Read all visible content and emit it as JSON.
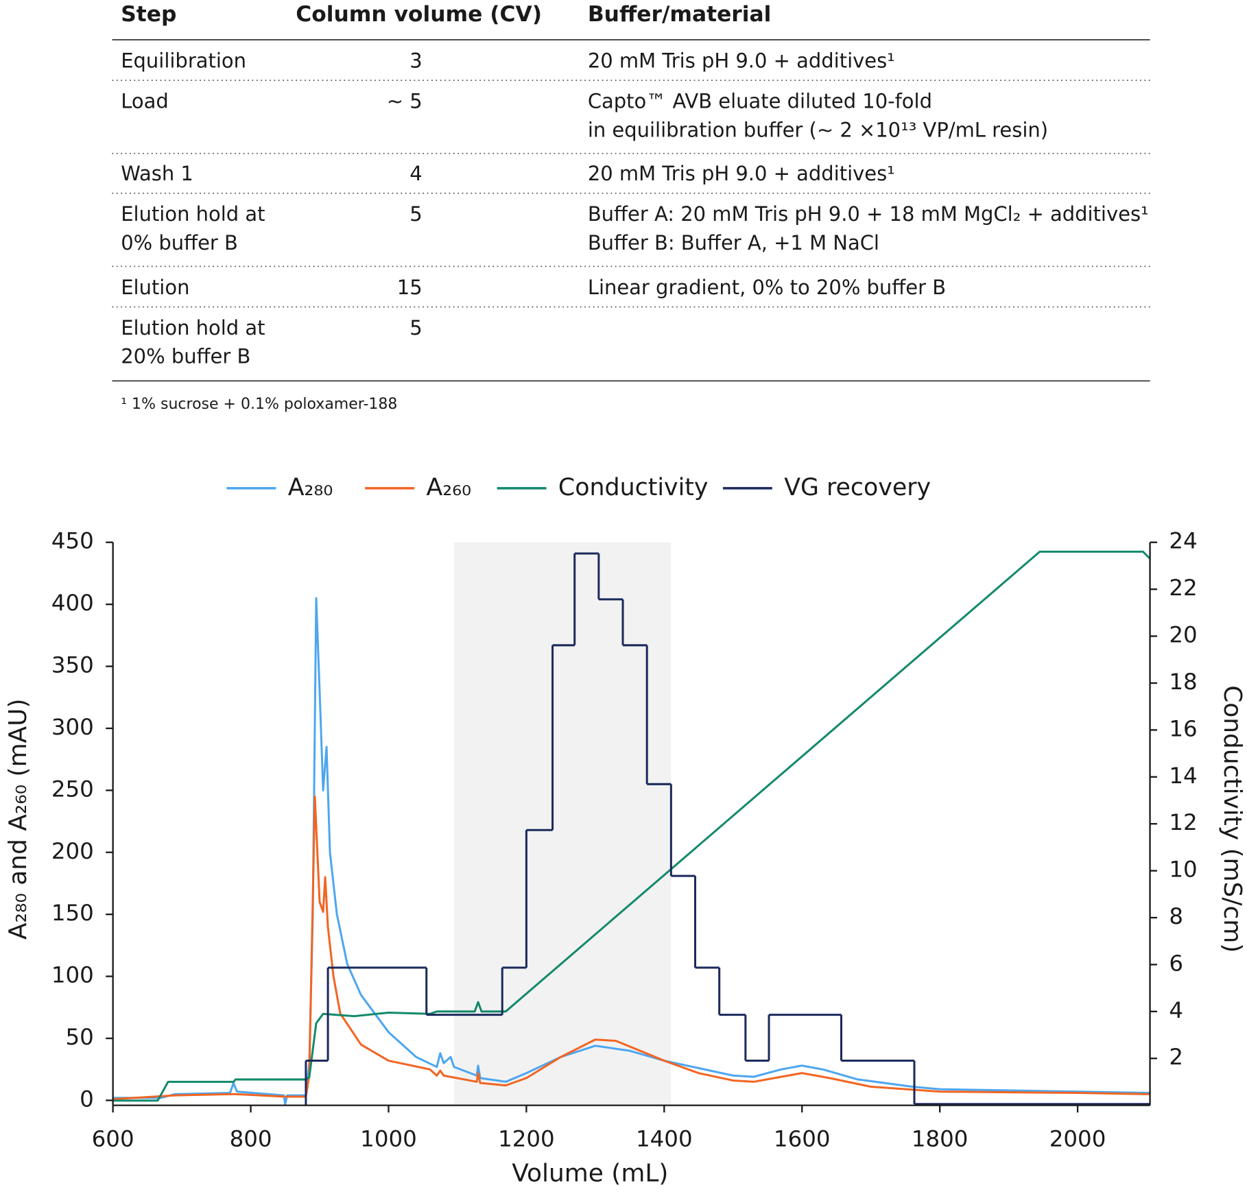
{
  "table": {
    "header": [
      "Step",
      "Column volume (CV)",
      "Buffer/material"
    ],
    "rows": [
      [
        [
          "Equilibration"
        ],
        [
          "3"
        ],
        [
          "20 mM Tris pH 9.0 + additives¹"
        ]
      ],
      [
        [
          "Load"
        ],
        [
          "~ 5"
        ],
        [
          "Capto™ AVB eluate diluted 10-fold",
          "in equilibration buffer (~ 2 ×10¹³ VP/mL resin)"
        ]
      ],
      [
        [
          "Wash 1"
        ],
        [
          "4"
        ],
        [
          "20 mM Tris pH 9.0 + additives¹"
        ]
      ],
      [
        [
          "Elution hold at",
          "0% buffer B"
        ],
        [
          "5"
        ],
        [
          "Buffer A: 20 mM Tris pH 9.0 + 18 mM MgCl₂ + additives¹",
          "Buffer B: Buffer A, +1 M NaCl"
        ]
      ],
      [
        [
          "Elution"
        ],
        [
          "15"
        ],
        [
          "Linear gradient, 0% to 20% buffer B"
        ]
      ],
      [
        [
          "Elution hold at",
          "20% buffer B"
        ],
        [
          "5"
        ],
        []
      ]
    ],
    "footnote": "¹ 1% sucrose + 0.1% poloxamer-188"
  },
  "chart_data": {
    "type": "line",
    "xlabel": "Volume (mL)",
    "ylabel": "A₂₈₀ and A₂₆₀ (mAU)",
    "y2label": "Conductivity (mS/cm)",
    "xlim": [
      600,
      2105
    ],
    "ylim": [
      -4,
      450
    ],
    "y2lim": [
      0,
      24
    ],
    "xticks": [
      600,
      800,
      1000,
      1200,
      1400,
      1600,
      1800,
      2000
    ],
    "yticks": [
      0,
      50,
      100,
      150,
      200,
      250,
      300,
      350,
      400,
      450
    ],
    "y2ticks": [
      2,
      4,
      6,
      8,
      10,
      12,
      14,
      16,
      18,
      20,
      22,
      24
    ],
    "highlight_xrange": [
      1095,
      1410
    ],
    "highlight_color": "#f2f2f2",
    "legend": "top",
    "series": [
      {
        "name": "A₂₈₀",
        "color": "#4da6f0",
        "x": [
          600,
          670,
          690,
          770,
          775,
          780,
          848,
          850,
          853,
          880,
          885,
          890,
          895,
          900,
          905,
          910,
          915,
          925,
          940,
          960,
          1000,
          1040,
          1070,
          1075,
          1080,
          1090,
          1095,
          1128,
          1130,
          1133,
          1170,
          1200,
          1250,
          1300,
          1350,
          1400,
          1450,
          1500,
          1530,
          1570,
          1600,
          1630,
          1680,
          1760,
          1800,
          1900,
          2000,
          2105
        ],
        "values": [
          2,
          2,
          5,
          6,
          14,
          7,
          4,
          -3,
          4,
          4,
          30,
          150,
          405,
          330,
          250,
          285,
          200,
          150,
          110,
          85,
          55,
          35,
          27,
          38,
          30,
          35,
          27,
          20,
          28,
          18,
          15,
          22,
          35,
          44,
          40,
          32,
          26,
          20,
          19,
          25,
          28,
          25,
          17,
          11,
          9,
          8,
          7,
          6
        ]
      },
      {
        "name": "A₂₆₀",
        "color": "#f26522",
        "x": [
          600,
          690,
          770,
          780,
          850,
          880,
          885,
          893,
          900,
          905,
          908,
          912,
          920,
          930,
          960,
          1000,
          1060,
          1070,
          1075,
          1080,
          1128,
          1130,
          1133,
          1170,
          1200,
          1250,
          1300,
          1330,
          1400,
          1450,
          1500,
          1530,
          1570,
          1600,
          1640,
          1700,
          1800,
          2000,
          2105
        ],
        "values": [
          1,
          4,
          5,
          5,
          3,
          3,
          20,
          245,
          160,
          152,
          180,
          140,
          100,
          70,
          45,
          32,
          25,
          20,
          24,
          20,
          15,
          22,
          14,
          12,
          18,
          35,
          49,
          48,
          32,
          22,
          16,
          15,
          19,
          22,
          18,
          11,
          7,
          6,
          5
        ]
      },
      {
        "name": "Conductivity",
        "color": "#13896b",
        "axis": "y2",
        "x": [
          600,
          665,
          680,
          775,
          778,
          880,
          885,
          895,
          905,
          950,
          1000,
          1060,
          1070,
          1125,
          1130,
          1135,
          1170,
          1945,
          2095,
          2105
        ],
        "values": [
          0.2,
          0.2,
          1.0,
          1.0,
          1.1,
          1.1,
          1.2,
          3.5,
          3.9,
          3.8,
          3.95,
          3.9,
          4.0,
          4.0,
          4.4,
          4.0,
          4.0,
          23.6,
          23.6,
          23.3
        ]
      },
      {
        "name": "VG recovery",
        "color": "#1b2a5c",
        "drawstyle": "steps-post",
        "x": [
          880,
          912,
          1055,
          1165,
          1200,
          1238,
          1270,
          1305,
          1340,
          1375,
          1410,
          1445,
          1480,
          1518,
          1552,
          1657,
          1763
        ],
        "values": [
          32,
          107,
          69,
          107,
          218,
          367,
          441,
          404,
          367,
          255,
          181,
          107,
          69,
          32,
          69,
          32,
          -3
        ]
      }
    ]
  }
}
